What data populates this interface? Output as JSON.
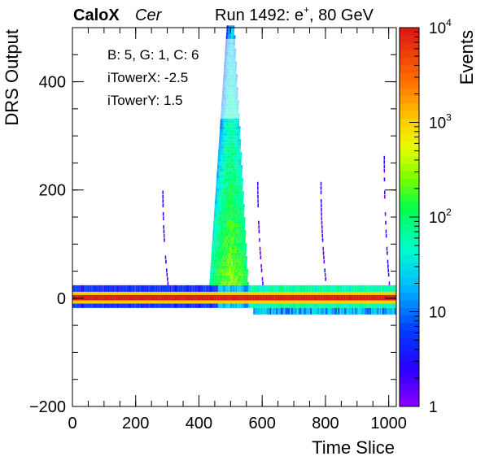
{
  "chart_data": {
    "type": "heatmap",
    "title_bold": "CaloX",
    "title_italic": "Cer",
    "run_label": "Run 1492: e",
    "run_sup": "+",
    "run_energy": ", 80 GeV",
    "xlabel": "Time Slice",
    "ylabel": "DRS Output",
    "zlabel": "Events",
    "xlim": [
      0,
      1024
    ],
    "ylim": [
      -200,
      500
    ],
    "zlim": [
      1,
      10000
    ],
    "z_scale": "log",
    "x_ticks": [
      "0",
      "200",
      "400",
      "600",
      "800",
      "1000"
    ],
    "y_ticks": [
      "−200",
      "0",
      "200",
      "400"
    ],
    "z_ticks": [
      {
        "base": "1",
        "exp": ""
      },
      {
        "base": "10",
        "exp": ""
      },
      {
        "base": "10",
        "exp": "2"
      },
      {
        "base": "10",
        "exp": "3"
      },
      {
        "base": "10",
        "exp": "4"
      }
    ],
    "info_box": [
      "B: 5, G: 1, C: 6",
      "iTowerX: -2.5",
      "iTowerY: 1.5"
    ],
    "features": [
      {
        "name": "baseline",
        "x_range": [
          0,
          1024
        ],
        "y_center": 0,
        "events": 10000
      },
      {
        "name": "main pulse",
        "x_peak": 500,
        "y_max": 500,
        "events": 300
      },
      {
        "name": "secondary pulse",
        "x_peak": 290,
        "y_max": 200,
        "events": 1
      },
      {
        "name": "secondary pulse",
        "x_peak": 590,
        "y_max": 220,
        "events": 1
      },
      {
        "name": "secondary pulse",
        "x_peak": 790,
        "y_max": 210,
        "events": 1
      },
      {
        "name": "secondary pulse",
        "x_peak": 990,
        "y_max": 260,
        "events": 1
      }
    ]
  }
}
